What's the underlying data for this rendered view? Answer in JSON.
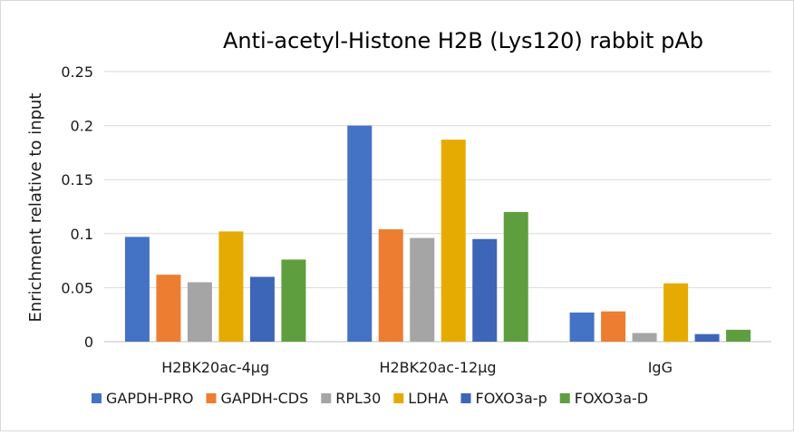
{
  "chart_data": {
    "type": "bar",
    "title": "Anti-acetyl-Histone H2B (Lys120) rabbit pAb",
    "xlabel": "",
    "ylabel": "Enrichment relative to input",
    "categories": [
      "H2BK20ac-4μg",
      "H2BK20ac-12μg",
      "IgG"
    ],
    "ylim": [
      0,
      0.25
    ],
    "yticks": [
      "0",
      "0.05",
      "0.1",
      "0.15",
      "0.2",
      "0.25"
    ],
    "ytick_values": [
      0,
      0.05,
      0.1,
      0.15,
      0.2,
      0.25
    ],
    "grid": true,
    "legend_position": "bottom",
    "series": [
      {
        "name": "GAPDH-PRO",
        "color": "#4472c4",
        "values": [
          0.097,
          0.2,
          0.027
        ]
      },
      {
        "name": "GAPDH-CDS",
        "color": "#ed7d31",
        "values": [
          0.062,
          0.104,
          0.028
        ]
      },
      {
        "name": "RPL30",
        "color": "#a5a5a5",
        "values": [
          0.055,
          0.096,
          0.008
        ]
      },
      {
        "name": "LDHA",
        "color": "#e6ab02",
        "values": [
          0.102,
          0.187,
          0.054
        ]
      },
      {
        "name": "FOXO3a-p",
        "color": "#3d65b8",
        "values": [
          0.06,
          0.095,
          0.007
        ]
      },
      {
        "name": "FOXO3a-D",
        "color": "#5f9e3f",
        "values": [
          0.076,
          0.12,
          0.011
        ]
      }
    ]
  }
}
